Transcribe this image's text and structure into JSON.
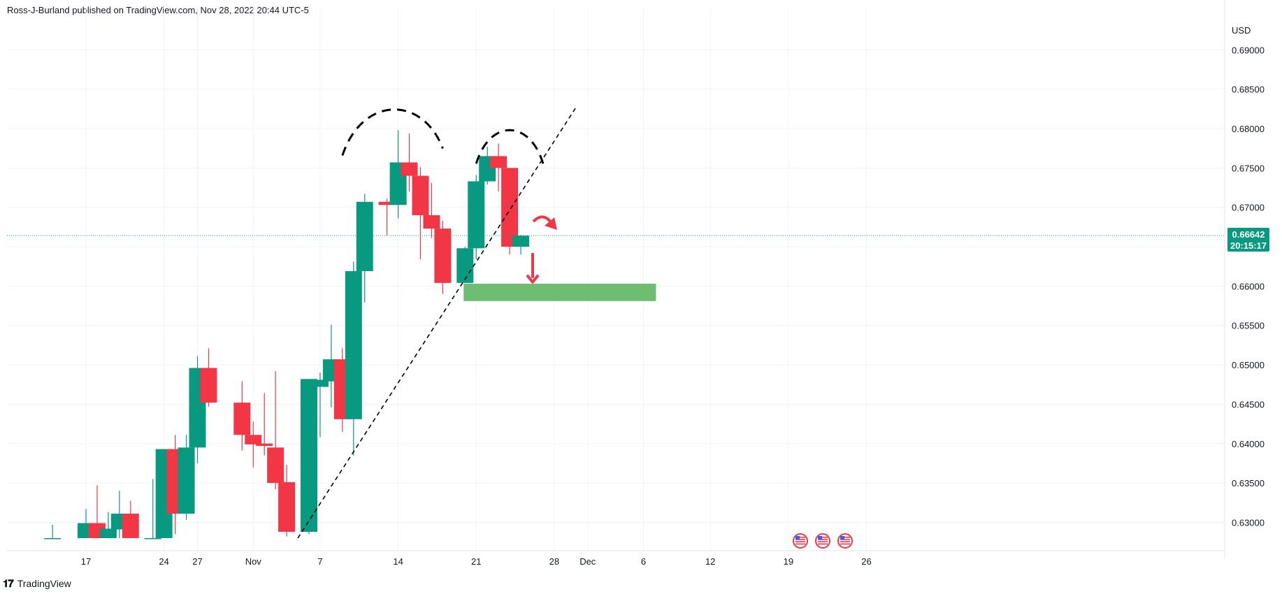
{
  "header": {
    "attribution": "Ross-J-Burland published on TradingView.com, Nov 28, 2022 20:44 UTC-5"
  },
  "footer": {
    "brand": "TradingView",
    "logo_icon": "tradingview-logo-icon"
  },
  "colors": {
    "up": "#089981",
    "down": "#f23645",
    "grid": "#f0f3fa",
    "current_price": "#089981",
    "support_zone": "#66bb6a",
    "arrow": "#f23645",
    "pattern_line": "#000000"
  },
  "chart_data": {
    "type": "candlestick",
    "title": "",
    "currency": "USD",
    "ylim": [
      0.628,
      0.691
    ],
    "y_ticks": [
      "0.63000",
      "0.63500",
      "0.64000",
      "0.64500",
      "0.65000",
      "0.65500",
      "0.66000",
      "0.66500",
      "0.67000",
      "0.67500",
      "0.68000",
      "0.68500",
      "0.69000"
    ],
    "x_ticks": [
      "17",
      "24",
      "27",
      "Nov",
      "7",
      "14",
      "21",
      "28",
      "Dec",
      "6",
      "12",
      "19",
      "26"
    ],
    "current_price": "0.66642",
    "countdown": "20:15:17",
    "candles": [
      {
        "date": "2022-10-14",
        "open": 0.628,
        "high": 0.6297,
        "low": 0.628,
        "close": 0.628
      },
      {
        "date": "2022-10-17",
        "open": 0.628,
        "high": 0.6317,
        "low": 0.628,
        "close": 0.6299
      },
      {
        "date": "2022-10-18",
        "open": 0.6299,
        "high": 0.6347,
        "low": 0.628,
        "close": 0.628
      },
      {
        "date": "2022-10-19",
        "open": 0.628,
        "high": 0.6313,
        "low": 0.628,
        "close": 0.6292
      },
      {
        "date": "2022-10-20",
        "open": 0.6291,
        "high": 0.634,
        "low": 0.628,
        "close": 0.6311
      },
      {
        "date": "2022-10-21",
        "open": 0.6311,
        "high": 0.6327,
        "low": 0.628,
        "close": 0.628
      },
      {
        "date": "2022-10-23",
        "open": 0.628,
        "high": 0.6355,
        "low": 0.628,
        "close": 0.628
      },
      {
        "date": "2022-10-24",
        "open": 0.628,
        "high": 0.6393,
        "low": 0.628,
        "close": 0.6393
      },
      {
        "date": "2022-10-25",
        "open": 0.6393,
        "high": 0.6411,
        "low": 0.6285,
        "close": 0.6311
      },
      {
        "date": "2022-10-26",
        "open": 0.6311,
        "high": 0.6411,
        "low": 0.6303,
        "close": 0.6395
      },
      {
        "date": "2022-10-27",
        "open": 0.6395,
        "high": 0.6511,
        "low": 0.6375,
        "close": 0.6496
      },
      {
        "date": "2022-10-28",
        "open": 0.6496,
        "high": 0.6521,
        "low": 0.6447,
        "close": 0.6452
      },
      {
        "date": "2022-10-31",
        "open": 0.6452,
        "high": 0.6479,
        "low": 0.6391,
        "close": 0.6411
      },
      {
        "date": "2022-11-01",
        "open": 0.6411,
        "high": 0.6428,
        "low": 0.637,
        "close": 0.6399
      },
      {
        "date": "2022-11-02",
        "open": 0.64,
        "high": 0.6464,
        "low": 0.6385,
        "close": 0.6397
      },
      {
        "date": "2022-11-03",
        "open": 0.6395,
        "high": 0.6492,
        "low": 0.6342,
        "close": 0.635
      },
      {
        "date": "2022-11-04",
        "open": 0.6351,
        "high": 0.6373,
        "low": 0.6282,
        "close": 0.6288
      },
      {
        "date": "2022-11-06",
        "open": 0.6288,
        "high": 0.6482,
        "low": 0.6285,
        "close": 0.6482
      },
      {
        "date": "2022-11-07",
        "open": 0.6472,
        "high": 0.649,
        "low": 0.6408,
        "close": 0.6481
      },
      {
        "date": "2022-11-08",
        "open": 0.6479,
        "high": 0.6551,
        "low": 0.6446,
        "close": 0.6507
      },
      {
        "date": "2022-11-09",
        "open": 0.6507,
        "high": 0.6521,
        "low": 0.6415,
        "close": 0.6431
      },
      {
        "date": "2022-11-10",
        "open": 0.6431,
        "high": 0.6631,
        "low": 0.6385,
        "close": 0.6619
      },
      {
        "date": "2022-11-11",
        "open": 0.6619,
        "high": 0.6717,
        "low": 0.6579,
        "close": 0.6707
      },
      {
        "date": "2022-11-13",
        "open": 0.6707,
        "high": 0.6711,
        "low": 0.6664,
        "close": 0.6703
      },
      {
        "date": "2022-11-14",
        "open": 0.6703,
        "high": 0.6798,
        "low": 0.6686,
        "close": 0.6757
      },
      {
        "date": "2022-11-15",
        "open": 0.6757,
        "high": 0.6794,
        "low": 0.672,
        "close": 0.674
      },
      {
        "date": "2022-11-16",
        "open": 0.674,
        "high": 0.6751,
        "low": 0.6634,
        "close": 0.669
      },
      {
        "date": "2022-11-17",
        "open": 0.669,
        "high": 0.6731,
        "low": 0.6661,
        "close": 0.6673
      },
      {
        "date": "2022-11-18",
        "open": 0.6673,
        "high": 0.6683,
        "low": 0.659,
        "close": 0.6604
      },
      {
        "date": "2022-11-20",
        "open": 0.6604,
        "high": 0.665,
        "low": 0.6604,
        "close": 0.6648
      },
      {
        "date": "2022-11-21",
        "open": 0.6648,
        "high": 0.6741,
        "low": 0.6634,
        "close": 0.6733
      },
      {
        "date": "2022-11-22",
        "open": 0.6733,
        "high": 0.6777,
        "low": 0.6729,
        "close": 0.6765
      },
      {
        "date": "2022-11-23",
        "open": 0.6765,
        "high": 0.6781,
        "low": 0.672,
        "close": 0.675
      },
      {
        "date": "2022-11-24",
        "open": 0.675,
        "high": 0.675,
        "low": 0.664,
        "close": 0.665
      },
      {
        "date": "2022-11-25",
        "open": 0.665,
        "high": 0.6665,
        "low": 0.664,
        "close": 0.6664
      }
    ],
    "annotations": {
      "support_zone": {
        "from": "2022-11-20",
        "to": "2022-12-07",
        "low": 0.6581,
        "high": 0.6603
      },
      "trendline": {
        "from": {
          "date": "2022-11-05",
          "price": 0.628
        },
        "to": {
          "date": "2022-11-30",
          "price": 0.6828
        }
      },
      "head_arcs": [
        {
          "from": "2022-11-09",
          "to": "2022-11-18",
          "peak": 0.6828
        },
        {
          "from": "2022-11-21",
          "to": "2022-11-27",
          "peak": 0.6798
        }
      ],
      "down_arrow": {
        "date": "2022-11-26",
        "from": 0.6642,
        "to": 0.6605
      },
      "curved_arrow": {
        "date": "2022-11-26",
        "price": 0.6682
      }
    },
    "event_icons": [
      "us-flag-icon",
      "us-flag-icon",
      "us-flag-icon"
    ]
  }
}
